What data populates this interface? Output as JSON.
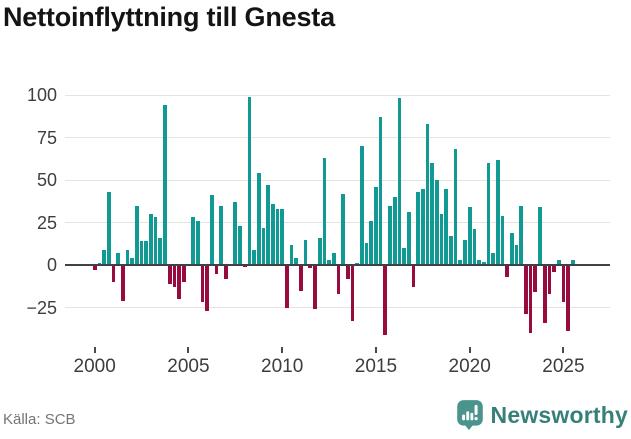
{
  "header": {
    "title": "Nettoinflyttning till Gnesta"
  },
  "chart_data": {
    "type": "bar",
    "title": "Nettoinflyttning till Gnesta",
    "xlabel": "",
    "ylabel": "",
    "x_start": "2000 Q1",
    "interval": "quarter",
    "values": [
      -3,
      1,
      9,
      43,
      -10,
      7,
      -21,
      9,
      4,
      35,
      14,
      14,
      30,
      28,
      16,
      94,
      -11,
      -13,
      -20,
      -10,
      0,
      28,
      26,
      -22,
      -27,
      41,
      -5,
      35,
      -8,
      0,
      37,
      23,
      -1,
      99,
      9,
      54,
      22,
      47,
      36,
      33,
      33,
      -25,
      12,
      4,
      -15,
      15,
      -2,
      -26,
      16,
      63,
      3,
      7,
      -17,
      42,
      -8,
      -33,
      1,
      70,
      13,
      26,
      46,
      87,
      -41,
      35,
      40,
      98,
      10,
      31,
      -13,
      43,
      45,
      83,
      60,
      50,
      30,
      45,
      17,
      68,
      3,
      15,
      34,
      21,
      3,
      2,
      60,
      7,
      62,
      29,
      -7,
      19,
      12,
      35,
      -29,
      -40,
      -16,
      34,
      -34,
      -17,
      -4,
      3,
      -22,
      -39,
      3
    ],
    "y_ticks": [
      {
        "value": 100,
        "label": "100"
      },
      {
        "value": 75,
        "label": "75"
      },
      {
        "value": 50,
        "label": "50"
      },
      {
        "value": 25,
        "label": "25"
      },
      {
        "value": 0,
        "label": "0"
      },
      {
        "value": -25,
        "label": "−25"
      }
    ],
    "x_ticks": [
      {
        "year": 2000,
        "label": "2000"
      },
      {
        "year": 2005,
        "label": "2005"
      },
      {
        "year": 2010,
        "label": "2010"
      },
      {
        "year": 2015,
        "label": "2015"
      },
      {
        "year": 2020,
        "label": "2020"
      },
      {
        "year": 2025,
        "label": "2025"
      }
    ],
    "ylim": [
      -47,
      108
    ],
    "grid": true,
    "legend": "none",
    "colors": {
      "positive": "#109a93",
      "negative": "#970b3f",
      "zero_line": "#3d4247"
    }
  },
  "footer": {
    "source": "Källa: SCB",
    "brand": "Newsworthy"
  }
}
